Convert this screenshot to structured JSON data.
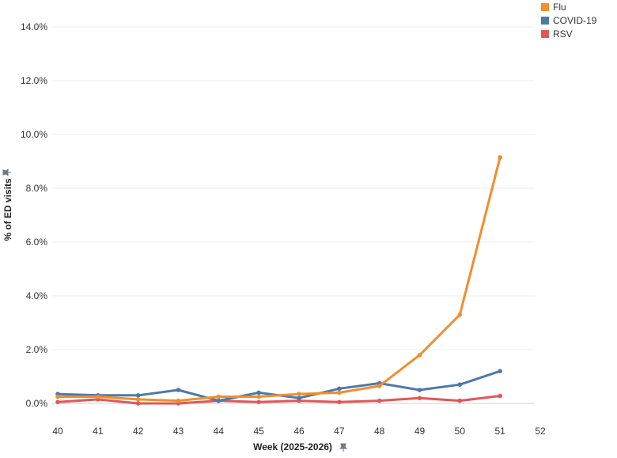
{
  "chart_data": {
    "type": "line",
    "xlabel": "Week (2025-2026)",
    "ylabel": "% of ED visits",
    "x": [
      40,
      41,
      42,
      43,
      44,
      45,
      46,
      47,
      48,
      49,
      50,
      51
    ],
    "x_ticks": [
      "40",
      "41",
      "42",
      "43",
      "44",
      "45",
      "46",
      "47",
      "48",
      "49",
      "50",
      "51",
      "52"
    ],
    "xlim": [
      40,
      52
    ],
    "ylim": [
      0,
      14
    ],
    "y_ticks": [
      0,
      2,
      4,
      6,
      8,
      10,
      12,
      14
    ],
    "y_tick_labels": [
      "0.0%",
      "2.0%",
      "4.0%",
      "6.0%",
      "8.0%",
      "10.0%",
      "12.0%",
      "14.0%"
    ],
    "grid": true,
    "legend_position": "top-right",
    "series": [
      {
        "name": "Flu",
        "color": "#f28e2b",
        "values": [
          0.25,
          0.25,
          0.15,
          0.1,
          0.25,
          0.25,
          0.35,
          0.4,
          0.65,
          1.8,
          3.3,
          9.15
        ]
      },
      {
        "name": "COVID-19",
        "color": "#4e79a7",
        "values": [
          0.35,
          0.3,
          0.3,
          0.5,
          0.1,
          0.4,
          0.2,
          0.55,
          0.75,
          0.5,
          0.7,
          1.2
        ]
      },
      {
        "name": "RSV",
        "color": "#e15759",
        "values": [
          0.05,
          0.15,
          0.0,
          0.0,
          0.1,
          0.05,
          0.1,
          0.05,
          0.1,
          0.2,
          0.1,
          0.28
        ]
      }
    ]
  }
}
